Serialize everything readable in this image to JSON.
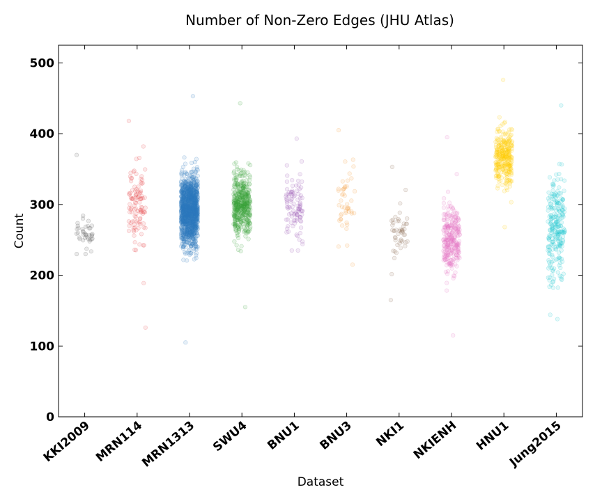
{
  "chart_data": {
    "type": "scatter",
    "title": "Number of Non-Zero Edges (JHU Atlas)",
    "xlabel": "Dataset",
    "ylabel": "Count",
    "ylim": [
      0,
      525
    ],
    "yticks": [
      0,
      100,
      200,
      300,
      400,
      500
    ],
    "yticklabels": [
      "0",
      "100",
      "200",
      "300",
      "400",
      "500"
    ],
    "grid": false,
    "legend": false,
    "categories": [
      "KKI2009",
      "MRN114",
      "MRN1313",
      "SWU4",
      "BNU1",
      "BNU3",
      "NKI1",
      "NKIENH",
      "HNU1",
      "Jung2015"
    ],
    "series": [
      {
        "category": "KKI2009",
        "color": "#555555",
        "n": 40,
        "center": 262,
        "spread": 28,
        "min": 230,
        "max": 370
      },
      {
        "category": "MRN114",
        "color": "#e8474c",
        "n": 110,
        "center": 300,
        "spread": 50,
        "min": 126,
        "max": 418
      },
      {
        "category": "MRN1313",
        "color": "#2f7bbf",
        "n": 1300,
        "center": 292,
        "spread": 45,
        "min": 105,
        "max": 453
      },
      {
        "category": "SWU4",
        "color": "#3aa23a",
        "n": 450,
        "center": 300,
        "spread": 45,
        "min": 155,
        "max": 443
      },
      {
        "category": "BNU1",
        "color": "#9b59b6",
        "n": 100,
        "center": 300,
        "spread": 42,
        "min": 235,
        "max": 393
      },
      {
        "category": "BNU3",
        "color": "#f39c3d",
        "n": 48,
        "center": 300,
        "spread": 50,
        "min": 215,
        "max": 405
      },
      {
        "category": "NKI1",
        "color": "#8b6a52",
        "n": 50,
        "center": 265,
        "spread": 38,
        "min": 165,
        "max": 353
      },
      {
        "category": "NKIENH",
        "color": "#e377c2",
        "n": 280,
        "center": 250,
        "spread": 45,
        "min": 115,
        "max": 395
      },
      {
        "category": "HNU1",
        "color": "#ffcc00",
        "n": 300,
        "center": 365,
        "spread": 38,
        "min": 268,
        "max": 476
      },
      {
        "category": "Jung2015",
        "color": "#17c7cf",
        "n": 240,
        "center": 265,
        "spread": 70,
        "min": 138,
        "max": 440
      }
    ]
  }
}
